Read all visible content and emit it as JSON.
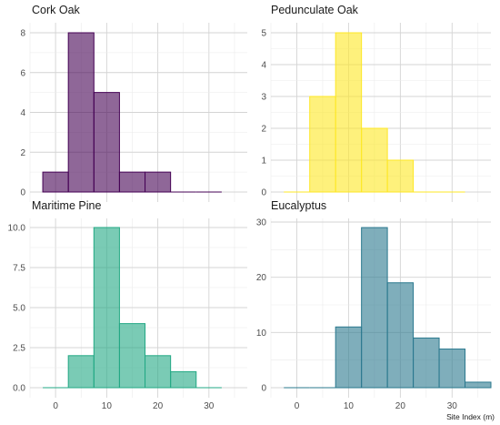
{
  "chart_data": [
    {
      "type": "bar",
      "title": "Cork Oak",
      "bin_edges": [
        -2.5,
        2.5,
        7.5,
        12.5,
        17.5,
        22.5,
        27.5,
        32.5
      ],
      "values": [
        1,
        8,
        5,
        1,
        1,
        0,
        0
      ],
      "ylim": [
        0,
        8.4
      ],
      "yticks": [
        0,
        2,
        4,
        6,
        8
      ],
      "ytick_labels": [
        "0",
        "2",
        "4",
        "6",
        "8"
      ],
      "fill": "#440154",
      "stroke": "#440154"
    },
    {
      "type": "bar",
      "title": "Pedunculate Oak",
      "bin_edges": [
        -2.5,
        2.5,
        7.5,
        12.5,
        17.5,
        22.5,
        27.5,
        32.5
      ],
      "values": [
        0,
        3,
        5,
        2,
        1,
        0,
        0
      ],
      "ylim": [
        0,
        5.25
      ],
      "yticks": [
        0,
        1,
        2,
        3,
        4,
        5
      ],
      "ytick_labels": [
        "0",
        "1",
        "2",
        "3",
        "4",
        "5"
      ],
      "fill": "#FDE725",
      "stroke": "#FDE725"
    },
    {
      "type": "bar",
      "title": "Maritime Pine",
      "bin_edges": [
        -2.5,
        2.5,
        7.5,
        12.5,
        17.5,
        22.5,
        27.5,
        32.5
      ],
      "values": [
        0,
        2,
        10,
        4,
        2,
        1,
        0
      ],
      "ylim": [
        0,
        10.5
      ],
      "yticks": [
        0,
        2.5,
        5,
        7.5,
        10
      ],
      "ytick_labels": [
        "0.0",
        "2.5",
        "5.0",
        "7.5",
        "10.0"
      ],
      "fill": "#22A884",
      "stroke": "#22A884"
    },
    {
      "type": "bar",
      "title": "Eucalyptus",
      "bin_edges": [
        -2.5,
        2.5,
        7.5,
        12.5,
        17.5,
        22.5,
        27.5,
        32.5
      ],
      "values": [
        0,
        0,
        11,
        29,
        19,
        9,
        7,
        1
      ],
      "bin_edges_extended": [
        -2.5,
        2.5,
        7.5,
        12.5,
        17.5,
        22.5,
        27.5,
        32.5,
        37.5
      ],
      "ylim": [
        0,
        31
      ],
      "yticks": [
        0,
        10,
        20,
        30
      ],
      "ytick_labels": [
        "0",
        "10",
        "20",
        "30"
      ],
      "fill": "#2A788E",
      "stroke": "#2A788E"
    }
  ],
  "x_axis": {
    "xlim": [
      -5,
      37.5
    ],
    "xticks": [
      0,
      10,
      20,
      30
    ],
    "xtick_labels": [
      "0",
      "10",
      "20",
      "30"
    ],
    "label": "Site Index (m)"
  },
  "grid": true
}
